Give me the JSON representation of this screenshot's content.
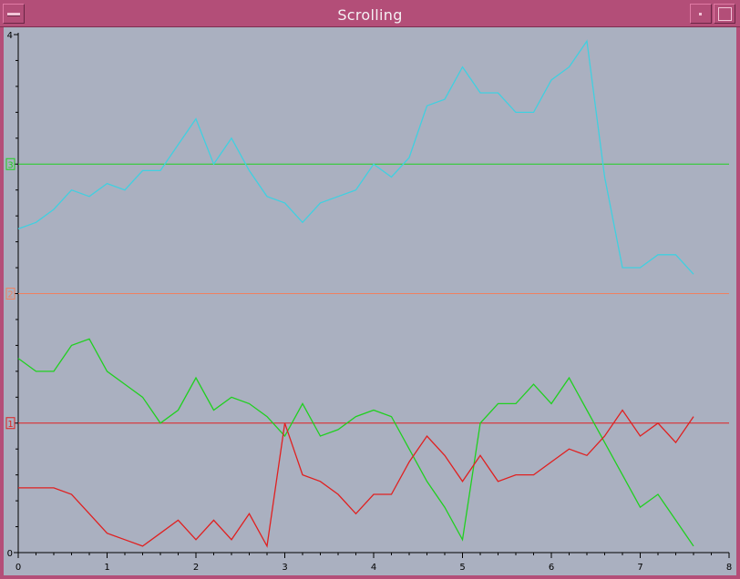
{
  "window": {
    "title": "Scrolling"
  },
  "chart_data": {
    "type": "line",
    "title": "",
    "xlabel": "",
    "ylabel": "",
    "xlim": [
      0,
      8
    ],
    "ylim": [
      0,
      4
    ],
    "x_ticks": [
      "0",
      "1",
      "2",
      "3",
      "4",
      "5",
      "6",
      "7",
      "8"
    ],
    "y_ticks": [
      "0",
      "1",
      "2",
      "3",
      "4"
    ],
    "grid": false,
    "reference_lines": [
      {
        "label": "1",
        "y": 1.0,
        "color": "#e02020"
      },
      {
        "label": "2",
        "y": 2.0,
        "color": "#f08060"
      },
      {
        "label": "3",
        "y": 3.0,
        "color": "#20d020"
      }
    ],
    "series": [
      {
        "color": "#40d0e0",
        "x": [
          0,
          0.2,
          0.4,
          0.6,
          0.8,
          1.0,
          1.2,
          1.4,
          1.6,
          1.8,
          2.0,
          2.2,
          2.4,
          2.6,
          2.8,
          3.0,
          3.2,
          3.4,
          3.6,
          3.8,
          4.0,
          4.2,
          4.4,
          4.6,
          4.8,
          5.0,
          5.2,
          5.4,
          5.6,
          5.8,
          6.0,
          6.2,
          6.4,
          6.6,
          6.8,
          7.0,
          7.2,
          7.4,
          7.6
        ],
        "values": [
          2.5,
          2.55,
          2.65,
          2.8,
          2.75,
          2.85,
          2.8,
          2.95,
          2.95,
          3.15,
          3.35,
          3.0,
          3.2,
          2.95,
          2.75,
          2.7,
          2.55,
          2.7,
          2.75,
          2.8,
          3.0,
          2.9,
          3.05,
          3.45,
          3.5,
          3.75,
          3.55,
          3.55,
          3.4,
          3.4,
          3.65,
          3.75,
          3.95,
          2.9,
          2.2,
          2.2,
          2.3,
          2.3,
          2.15
        ]
      },
      {
        "color": "#20d020",
        "x": [
          0,
          0.2,
          0.4,
          0.6,
          0.8,
          1.0,
          1.2,
          1.4,
          1.6,
          1.8,
          2.0,
          2.2,
          2.4,
          2.6,
          2.8,
          3.0,
          3.2,
          3.4,
          3.6,
          3.8,
          4.0,
          4.2,
          4.4,
          4.6,
          4.8,
          5.0,
          5.2,
          5.4,
          5.6,
          5.8,
          6.0,
          6.2,
          6.4,
          6.6,
          6.8,
          7.0,
          7.2,
          7.4,
          7.6
        ],
        "values": [
          1.5,
          1.4,
          1.4,
          1.6,
          1.65,
          1.4,
          1.3,
          1.2,
          1.0,
          1.1,
          1.35,
          1.1,
          1.2,
          1.15,
          1.05,
          0.9,
          1.15,
          0.9,
          0.95,
          1.05,
          1.1,
          1.05,
          0.8,
          0.55,
          0.35,
          0.1,
          1.0,
          1.15,
          1.15,
          1.3,
          1.15,
          1.35,
          1.1,
          0.85,
          0.6,
          0.35,
          0.45,
          0.25,
          0.05
        ]
      },
      {
        "color": "#e02020",
        "x": [
          0,
          0.2,
          0.4,
          0.6,
          0.8,
          1.0,
          1.2,
          1.4,
          1.6,
          1.8,
          2.0,
          2.2,
          2.4,
          2.6,
          2.8,
          3.0,
          3.2,
          3.4,
          3.6,
          3.8,
          4.0,
          4.2,
          4.4,
          4.6,
          4.8,
          5.0,
          5.2,
          5.4,
          5.6,
          5.8,
          6.0,
          6.2,
          6.4,
          6.6,
          6.8,
          7.0,
          7.2,
          7.4,
          7.6
        ],
        "values": [
          0.5,
          0.5,
          0.5,
          0.45,
          0.3,
          0.15,
          0.1,
          0.05,
          0.15,
          0.25,
          0.1,
          0.25,
          0.1,
          0.3,
          0.05,
          1.0,
          0.6,
          0.55,
          0.45,
          0.3,
          0.45,
          0.45,
          0.7,
          0.9,
          0.75,
          0.55,
          0.75,
          0.55,
          0.6,
          0.6,
          0.7,
          0.8,
          0.75,
          0.9,
          1.1,
          0.9,
          1.0,
          0.85,
          1.05
        ]
      }
    ]
  }
}
